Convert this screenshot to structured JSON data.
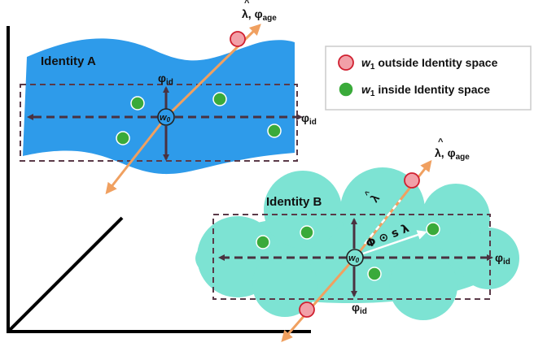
{
  "identity_a": {
    "title": "Identity A",
    "center_label": "w",
    "center_sub": "0",
    "phi": "φ",
    "id_sub": "id",
    "lambda_label": "λ, φ",
    "age_sub": "age",
    "hat": "^"
  },
  "identity_b": {
    "title": "Identity B",
    "center_label": "w",
    "center_sub": "0",
    "phi": "φ",
    "id_sub": "id",
    "lambda_label": "λ, φ",
    "age_sub": "age",
    "hat": "^",
    "lambda_small": "λ",
    "projection_label": "Φ ⊙ s λ"
  },
  "legend": {
    "outside_w": "w",
    "outside_sub": "1",
    "outside_text": " outside Identity space",
    "inside_w": "w",
    "inside_sub": "1",
    "inside_text": " inside Identity space",
    "outside_color": "#f2a0a8",
    "inside_color": "#3aaa3a"
  },
  "colors": {
    "identity_a_fill": "#2e9bea",
    "identity_b_fill": "#7de3d3",
    "box_stroke": "#5a3a48",
    "arrow_orange": "#f0a060",
    "arrow_dark": "#4a3240"
  }
}
